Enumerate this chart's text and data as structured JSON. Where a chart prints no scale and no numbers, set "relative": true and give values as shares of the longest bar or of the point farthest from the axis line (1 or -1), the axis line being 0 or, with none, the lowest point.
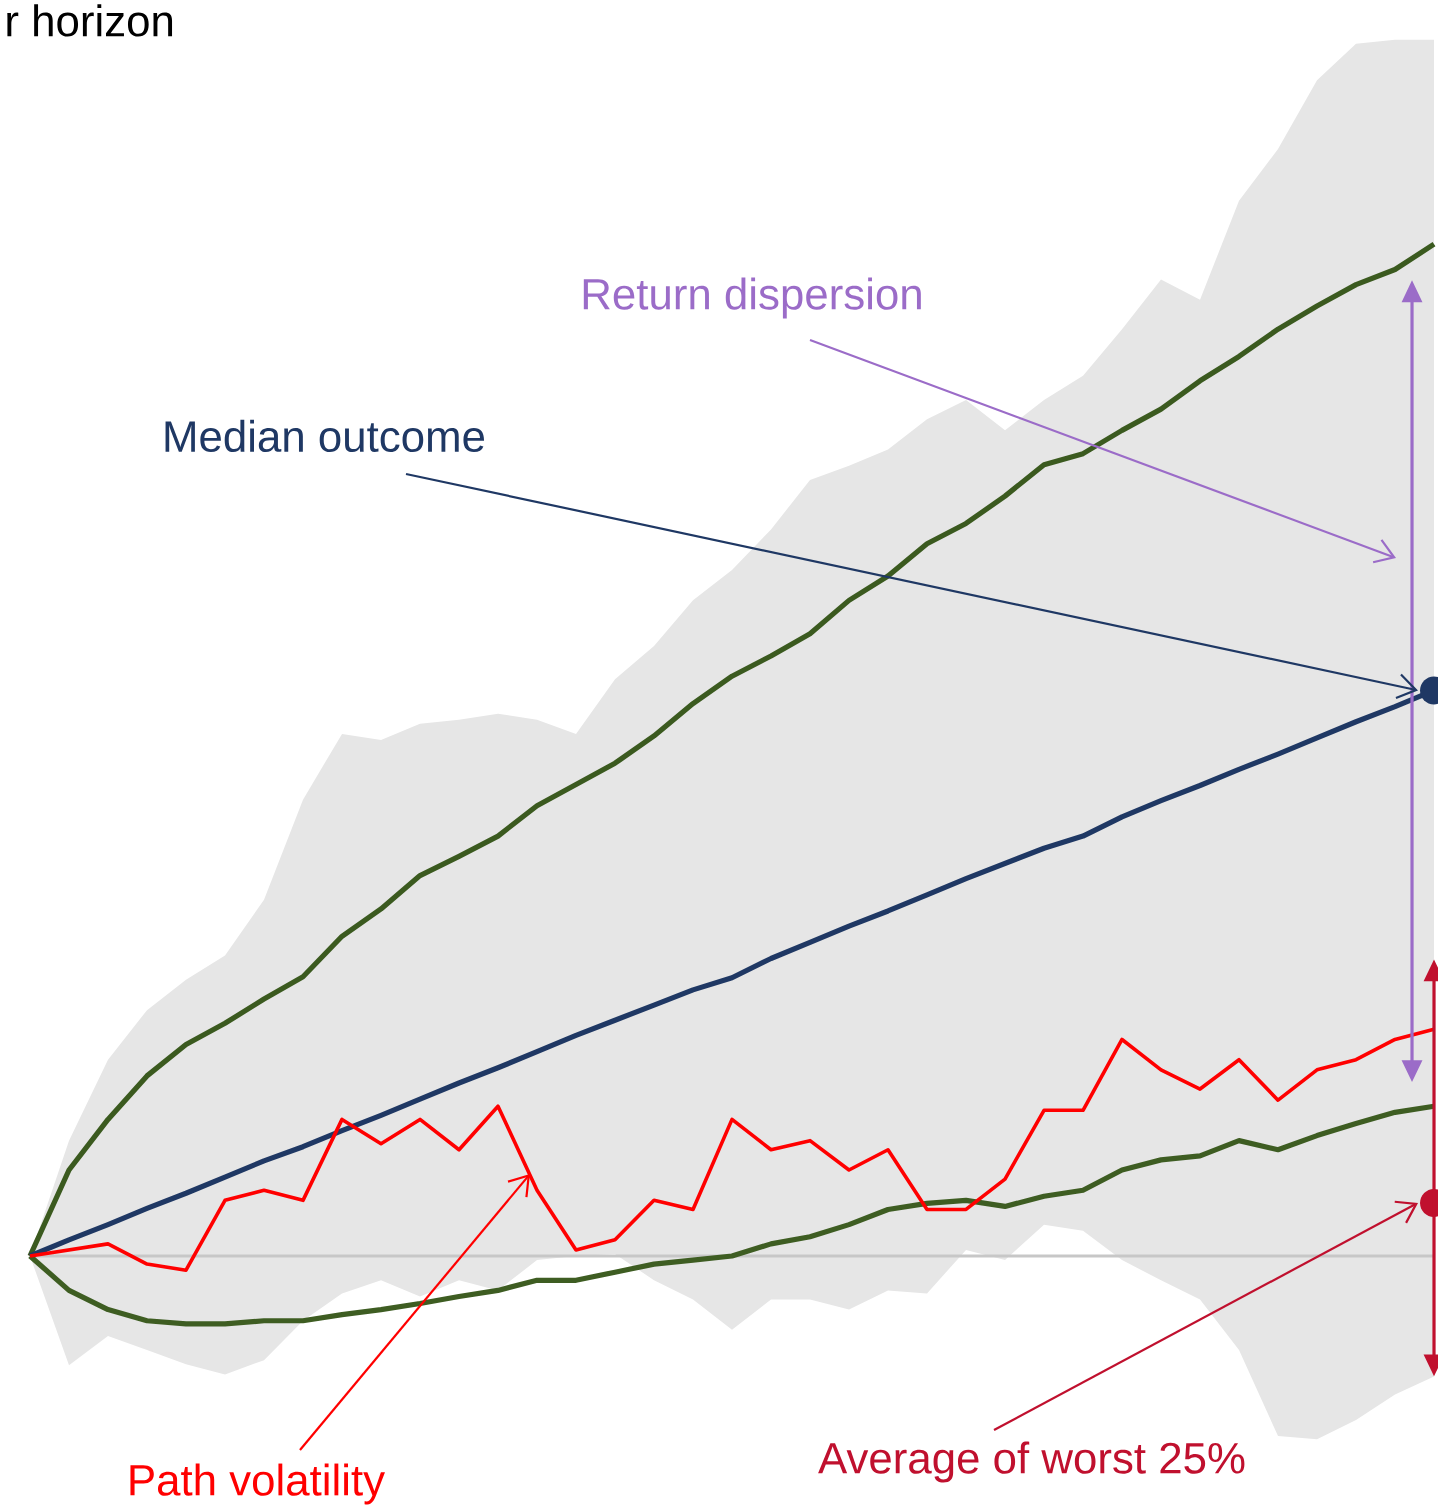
{
  "chart_data": {
    "type": "line",
    "relative": true,
    "title": "r horizon",
    "categories": [
      null,
      null,
      null,
      null,
      null,
      null,
      null,
      null,
      null,
      null,
      null,
      null,
      null,
      null,
      null,
      null,
      null,
      null,
      null,
      null,
      null,
      null,
      null,
      null,
      null,
      null,
      null,
      null,
      null,
      null,
      null,
      null,
      null,
      null,
      null,
      null,
      null
    ],
    "series": [
      {
        "color": "#3b5a1f",
        "values": [
          0,
          0.085,
          0.135,
          0.178,
          0.209,
          0.23,
          0.254,
          0.276,
          0.316,
          0.343,
          0.376,
          0.395,
          0.415,
          0.445,
          0.466,
          0.487,
          0.514,
          0.546,
          0.573,
          0.593,
          0.615,
          0.648,
          0.672,
          0.704,
          0.724,
          0.751,
          0.782,
          0.793,
          0.816,
          0.837,
          0.865,
          0.889,
          0.916,
          0.939,
          0.96,
          0.975,
          1
        ]
      },
      {
        "color": "#1f3864",
        "values": [
          0,
          0.016,
          0.031,
          0.047,
          0.062,
          0.078,
          0.094,
          0.108,
          0.124,
          0.139,
          0.155,
          0.171,
          0.186,
          0.202,
          0.218,
          0.233,
          0.248,
          0.263,
          0.275,
          0.294,
          0.31,
          0.326,
          0.341,
          0.357,
          0.373,
          0.388,
          0.403,
          0.415,
          0.434,
          0.45,
          0.465,
          0.481,
          0.496,
          0.512,
          0.528,
          0.543,
          0.559
        ],
        "upper": [
          0,
          0.114,
          0.194,
          0.243,
          0.273,
          0.297,
          0.352,
          0.451,
          0.516,
          0.51,
          0.526,
          0.53,
          0.536,
          0.53,
          0.516,
          0.57,
          0.603,
          0.648,
          0.678,
          0.718,
          0.767,
          0.781,
          0.797,
          0.827,
          0.846,
          0.816,
          0.846,
          0.87,
          0.916,
          0.965,
          0.945,
          1.043,
          1.094,
          1.162,
          1.198,
          1.202,
          1.202
        ],
        "lower": [
          0,
          -0.108,
          -0.079,
          -0.093,
          -0.107,
          -0.117,
          -0.103,
          -0.064,
          -0.037,
          -0.024,
          -0.04,
          -0.024,
          -0.034,
          -0.004,
          0,
          0.002,
          -0.024,
          -0.043,
          -0.073,
          -0.043,
          -0.043,
          -0.053,
          -0.034,
          -0.037,
          0.006,
          -0.004,
          0.031,
          0.025,
          -0.004,
          -0.024,
          -0.043,
          -0.093,
          -0.178,
          -0.181,
          -0.162,
          -0.137,
          -0.119
        ]
      },
      {
        "color": "#3e5d22",
        "values": [
          0,
          -0.034,
          -0.053,
          -0.064,
          -0.067,
          -0.067,
          -0.064,
          -0.064,
          -0.058,
          -0.053,
          -0.047,
          -0.04,
          -0.034,
          -0.024,
          -0.024,
          -0.016,
          -0.008,
          -0.004,
          0,
          0.012,
          0.019,
          0.031,
          0.046,
          0.052,
          0.055,
          0.049,
          0.059,
          0.065,
          0.085,
          0.095,
          0.099,
          0.114,
          0.105,
          0.119,
          0.131,
          0.142,
          0.148
        ]
      },
      {
        "color": "#ff0000",
        "values": [
          0,
          0.006,
          0.012,
          -0.008,
          -0.014,
          0.055,
          0.065,
          0.055,
          0.135,
          0.111,
          0.135,
          0.105,
          0.148,
          0.065,
          0.006,
          0.016,
          0.055,
          0.046,
          0.135,
          0.105,
          0.114,
          0.085,
          0.105,
          0.046,
          0.046,
          0.076,
          0.144,
          0.144,
          0.214,
          0.184,
          0.165,
          0.194,
          0.154,
          0.184,
          0.194,
          0.214,
          0.224
        ]
      }
    ],
    "annotations": [
      "Return dispersion",
      "Median outcome",
      "Path volatility",
      "Average of worst 25%"
    ]
  }
}
